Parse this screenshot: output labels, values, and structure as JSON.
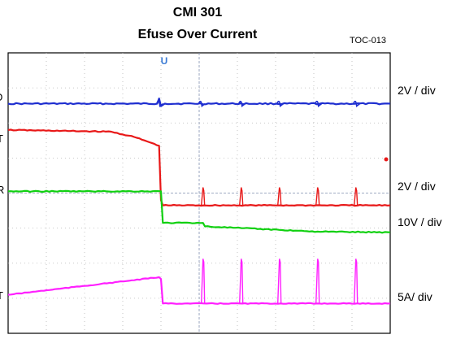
{
  "chart_data": {
    "type": "line",
    "title": "CMI  301",
    "subtitle": "Efuse Over Current",
    "figure_id": "TOC-013",
    "trigger_marker": "U",
    "channel_scales": [
      "2V / div",
      "2V / div",
      "10V / div",
      "5A/ div"
    ],
    "clipped_channel_labels": [
      "D",
      "T",
      "R",
      "T"
    ],
    "grid": true,
    "x_divisions": 10,
    "y_divisions": 8,
    "fault_time_div": 4.0,
    "series": [
      {
        "color": "#1f2fd0",
        "baseline_div": 1.45,
        "points": [
          [
            0,
            1.45
          ],
          [
            3.9,
            1.45
          ],
          [
            3.95,
            1.3
          ],
          [
            4.0,
            1.52
          ],
          [
            4.1,
            1.45
          ],
          [
            10,
            1.45
          ]
        ],
        "transients_div": [
          3.95,
          5.05,
          6.1,
          7.1,
          8.1,
          9.1
        ]
      },
      {
        "color": "#e81818",
        "points": [
          [
            0,
            2.2
          ],
          [
            2.7,
            2.25
          ],
          [
            3.3,
            2.4
          ],
          [
            3.7,
            2.55
          ],
          [
            3.95,
            2.65
          ],
          [
            4.0,
            4.2
          ],
          [
            4.05,
            4.35
          ],
          [
            10,
            4.35
          ]
        ],
        "spikes_div": [
          5.1,
          6.1,
          7.1,
          8.1,
          9.1
        ]
      },
      {
        "color": "#10d010",
        "points": [
          [
            0,
            3.95
          ],
          [
            4.0,
            3.95
          ],
          [
            4.05,
            4.85
          ],
          [
            5.1,
            4.85
          ],
          [
            5.15,
            4.95
          ],
          [
            6.1,
            5.0
          ],
          [
            7.1,
            5.05
          ],
          [
            8.1,
            5.1
          ],
          [
            10,
            5.12
          ]
        ]
      },
      {
        "color": "#ff20ff",
        "points": [
          [
            0,
            6.9
          ],
          [
            3.95,
            6.4
          ],
          [
            4.0,
            6.45
          ],
          [
            4.05,
            7.15
          ],
          [
            10,
            7.15
          ]
        ],
        "spikes_div": [
          5.1,
          6.1,
          7.1,
          8.1,
          9.1
        ]
      }
    ]
  }
}
